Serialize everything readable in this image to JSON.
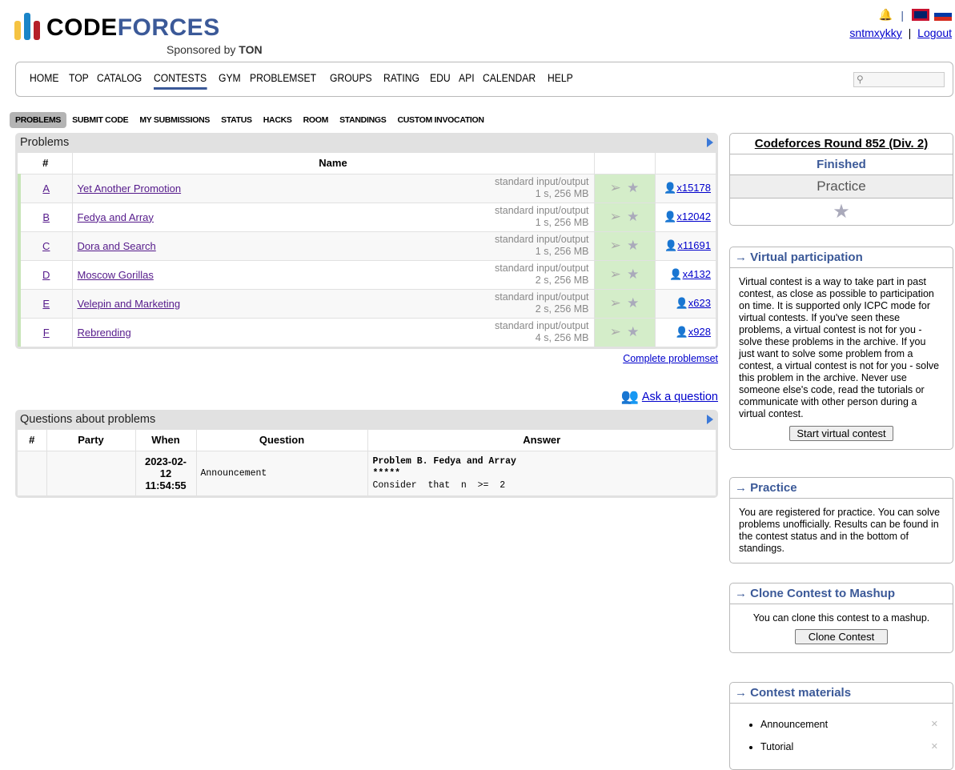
{
  "header": {
    "logo_code": "CODE",
    "logo_forces": "FORCES",
    "sponsor": "Sponsored by ",
    "sponsor_brand": "TON",
    "username": "sntmxykky",
    "logout": "Logout",
    "separator": "|"
  },
  "menu": [
    "HOME",
    "TOP",
    "CATALOG",
    "CONTESTS",
    "GYM",
    "PROBLEMSET",
    "GROUPS",
    "RATING",
    "EDU",
    "API",
    "CALENDAR",
    "HELP"
  ],
  "menu_active": "CONTESTS",
  "subtabs": [
    "PROBLEMS",
    "SUBMIT CODE",
    "MY SUBMISSIONS",
    "STATUS",
    "HACKS",
    "ROOM",
    "STANDINGS",
    "CUSTOM INVOCATION"
  ],
  "problems": {
    "title": "Problems",
    "col_num": "#",
    "col_name": "Name",
    "rows": [
      {
        "id": "A",
        "name": "Yet Another Promotion",
        "io": "standard input/output",
        "limits": "1 s, 256 MB",
        "solved": "x15178"
      },
      {
        "id": "B",
        "name": "Fedya and Array",
        "io": "standard input/output",
        "limits": "1 s, 256 MB",
        "solved": "x12042"
      },
      {
        "id": "C",
        "name": "Dora and Search",
        "io": "standard input/output",
        "limits": "1 s, 256 MB",
        "solved": "x11691"
      },
      {
        "id": "D",
        "name": "Moscow Gorillas",
        "io": "standard input/output",
        "limits": "2 s, 256 MB",
        "solved": "x4132"
      },
      {
        "id": "E",
        "name": "Velepin and Marketing",
        "io": "standard input/output",
        "limits": "2 s, 256 MB",
        "solved": "x623"
      },
      {
        "id": "F",
        "name": "Rebrending",
        "io": "standard input/output",
        "limits": "4 s, 256 MB",
        "solved": "x928"
      }
    ],
    "complete_link": "Complete problemset"
  },
  "ask": "Ask a question",
  "questions": {
    "title": "Questions about problems",
    "cols": [
      "#",
      "Party",
      "When",
      "Question",
      "Answer"
    ],
    "row": {
      "when": "2023-02-12 11:54:55",
      "question": "Announcement",
      "answer_l1": "Problem B. Fedya and Array",
      "answer_l2": "*****",
      "answer_l3": "Consider  that  n  >=  2"
    }
  },
  "sidebar": {
    "contest": {
      "name": "Codeforces Round 852 (Div. 2)",
      "status": "Finished",
      "mode": "Practice"
    },
    "virtual": {
      "title": "→ Virtual participation",
      "text": "Virtual contest is a way to take part in past contest, as close as possible to participation on time. It is supported only ICPC mode for virtual contests. If you've seen these problems, a virtual contest is not for you - solve these problems in the archive. If you just want to solve some problem from a contest, a virtual contest is not for you - solve this problem in the archive. Never use someone else's code, read the tutorials or communicate with other person during a virtual contest.",
      "button": "Start virtual contest"
    },
    "practice": {
      "title": "→ Practice",
      "text": "You are registered for practice. You can solve problems unofficially. Results can be found in the contest status and in the bottom of standings."
    },
    "clone": {
      "title": "→ Clone Contest to Mashup",
      "text": "You can clone this contest to a mashup.",
      "button": "Clone Contest"
    },
    "materials": {
      "title": "→ Contest materials",
      "items": [
        "Announcement",
        "Tutorial"
      ]
    }
  },
  "colors": {
    "accent": "#3b5998",
    "accepted_bg": "#d4edc9",
    "link": "#0000cc"
  }
}
